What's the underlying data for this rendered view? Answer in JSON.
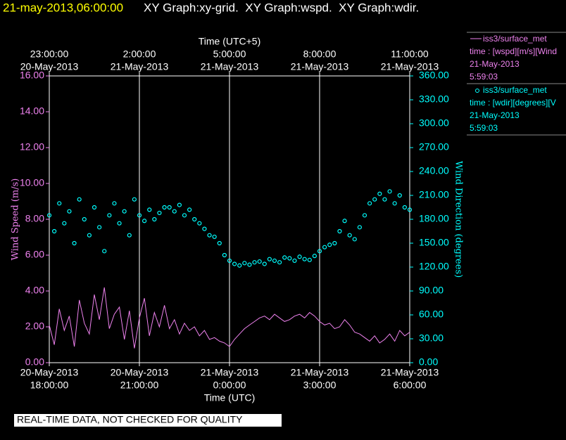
{
  "chart_data": {
    "type": "line",
    "timestamp": "21-may-2013,06:00:00",
    "title": "XY Graph:xy-grid.  XY Graph:wspd.  XY Graph:wdir.",
    "x_label_top": "Time (UTC+5)",
    "x_label": "Time (UTC)",
    "y_label": "Wind Speed (m/s)",
    "y2_label": "Wind Direction (degrees)",
    "note": "REAL-TIME DATA, NOT CHECKED FOR QUALITY",
    "grid": true,
    "xlim": [
      "2013-05-20T18:00",
      "2013-05-21T06:00"
    ],
    "xticks": [
      {
        "value": "2013-05-20T18:00",
        "label": [
          "20-May-2013",
          "18:00:00"
        ]
      },
      {
        "value": "2013-05-20T21:00",
        "label": [
          "20-May-2013",
          "21:00:00"
        ]
      },
      {
        "value": "2013-05-21T00:00",
        "label": [
          "21-May-2013",
          "0:00:00"
        ]
      },
      {
        "value": "2013-05-21T03:00",
        "label": [
          "21-May-2013",
          "3:00:00"
        ]
      },
      {
        "value": "2013-05-21T06:00",
        "label": [
          "21-May-2013",
          "6:00:00"
        ]
      }
    ],
    "x2ticks": [
      {
        "value": "2013-05-20T18:00",
        "label": [
          "23:00:00",
          "20-May-2013"
        ]
      },
      {
        "value": "2013-05-20T21:00",
        "label": [
          "2:00:00",
          "21-May-2013"
        ]
      },
      {
        "value": "2013-05-21T00:00",
        "label": [
          "5:00:00",
          "21-May-2013"
        ]
      },
      {
        "value": "2013-05-21T03:00",
        "label": [
          "8:00:00",
          "21-May-2013"
        ]
      },
      {
        "value": "2013-05-21T06:00",
        "label": [
          "11:00:00",
          "21-May-2013"
        ]
      }
    ],
    "ylim": [
      0,
      16
    ],
    "yticks": [
      {
        "value": 0,
        "label": "0.00"
      },
      {
        "value": 2,
        "label": "2.00"
      },
      {
        "value": 4,
        "label": "4.00"
      },
      {
        "value": 6,
        "label": "6.00"
      },
      {
        "value": 8,
        "label": "8.00"
      },
      {
        "value": 10,
        "label": "10.00"
      },
      {
        "value": 12,
        "label": "12.00"
      },
      {
        "value": 14,
        "label": "14.00"
      },
      {
        "value": 16,
        "label": "16.00"
      }
    ],
    "y2lim": [
      0,
      360
    ],
    "y2ticks": [
      {
        "value": 0,
        "label": "0.00"
      },
      {
        "value": 30,
        "label": "30.00"
      },
      {
        "value": 60,
        "label": "60.00"
      },
      {
        "value": 90,
        "label": "90.00"
      },
      {
        "value": 120,
        "label": "120.00"
      },
      {
        "value": 150,
        "label": "150.00"
      },
      {
        "value": 180,
        "label": "180.00"
      },
      {
        "value": 210,
        "label": "210.00"
      },
      {
        "value": 240,
        "label": "240.00"
      },
      {
        "value": 270,
        "label": "270.00"
      },
      {
        "value": 300,
        "label": "300.00"
      },
      {
        "value": 330,
        "label": "330.00"
      },
      {
        "value": 360,
        "label": "360.00"
      }
    ],
    "x": [
      "2013-05-20T18:00",
      "2013-05-20T18:10",
      "2013-05-20T18:20",
      "2013-05-20T18:30",
      "2013-05-20T18:40",
      "2013-05-20T18:50",
      "2013-05-20T19:00",
      "2013-05-20T19:10",
      "2013-05-20T19:20",
      "2013-05-20T19:30",
      "2013-05-20T19:40",
      "2013-05-20T19:50",
      "2013-05-20T20:00",
      "2013-05-20T20:10",
      "2013-05-20T20:20",
      "2013-05-20T20:30",
      "2013-05-20T20:40",
      "2013-05-20T20:50",
      "2013-05-20T21:00",
      "2013-05-20T21:10",
      "2013-05-20T21:20",
      "2013-05-20T21:30",
      "2013-05-20T21:40",
      "2013-05-20T21:50",
      "2013-05-20T22:00",
      "2013-05-20T22:10",
      "2013-05-20T22:20",
      "2013-05-20T22:30",
      "2013-05-20T22:40",
      "2013-05-20T22:50",
      "2013-05-20T23:00",
      "2013-05-20T23:10",
      "2013-05-20T23:20",
      "2013-05-20T23:30",
      "2013-05-20T23:40",
      "2013-05-20T23:50",
      "2013-05-21T00:00",
      "2013-05-21T00:10",
      "2013-05-21T00:20",
      "2013-05-21T00:30",
      "2013-05-21T00:40",
      "2013-05-21T00:50",
      "2013-05-21T01:00",
      "2013-05-21T01:10",
      "2013-05-21T01:20",
      "2013-05-21T01:30",
      "2013-05-21T01:40",
      "2013-05-21T01:50",
      "2013-05-21T02:00",
      "2013-05-21T02:10",
      "2013-05-21T02:20",
      "2013-05-21T02:30",
      "2013-05-21T02:40",
      "2013-05-21T02:50",
      "2013-05-21T03:00",
      "2013-05-21T03:10",
      "2013-05-21T03:20",
      "2013-05-21T03:30",
      "2013-05-21T03:40",
      "2013-05-21T03:50",
      "2013-05-21T04:00",
      "2013-05-21T04:10",
      "2013-05-21T04:20",
      "2013-05-21T04:30",
      "2013-05-21T04:40",
      "2013-05-21T04:50",
      "2013-05-21T05:00",
      "2013-05-21T05:10",
      "2013-05-21T05:20",
      "2013-05-21T05:30",
      "2013-05-21T05:40",
      "2013-05-21T05:50",
      "2013-05-21T06:00"
    ],
    "series": [
      {
        "name": "iss3/surface_met",
        "type": "line",
        "color": "#ee82ee",
        "desc": "time : [wspd][m/s][Wind",
        "date": "21-May-2013",
        "time": "5:59:03",
        "values": [
          2.1,
          1.0,
          3.0,
          1.8,
          2.6,
          0.9,
          3.5,
          2.2,
          1.6,
          3.8,
          2.4,
          4.2,
          1.9,
          2.7,
          3.1,
          1.3,
          2.9,
          0.8,
          2.5,
          3.6,
          1.5,
          2.8,
          2.0,
          3.2,
          1.9,
          2.4,
          1.6,
          2.2,
          1.8,
          2.0,
          1.5,
          1.8,
          1.3,
          1.4,
          1.2,
          1.1,
          0.9,
          1.3,
          1.6,
          1.9,
          2.1,
          2.3,
          2.5,
          2.6,
          2.4,
          2.7,
          2.5,
          2.3,
          2.4,
          2.6,
          2.7,
          2.5,
          2.8,
          2.6,
          2.3,
          2.1,
          2.2,
          1.9,
          2.0,
          2.4,
          2.1,
          1.7,
          1.6,
          1.4,
          1.2,
          1.5,
          1.1,
          1.3,
          1.6,
          1.2,
          1.8,
          1.5,
          1.7
        ]
      },
      {
        "name": "iss3/surface_met",
        "type": "scatter",
        "axis": "y2",
        "color": "#00ffff",
        "desc": "time : [wdir][degrees][V",
        "date": "21-May-2013",
        "time": "5:59:03",
        "values": [
          185,
          165,
          200,
          175,
          190,
          150,
          205,
          180,
          160,
          195,
          170,
          140,
          185,
          200,
          175,
          190,
          160,
          205,
          185,
          178,
          192,
          180,
          188,
          195,
          195,
          190,
          198,
          185,
          192,
          180,
          175,
          168,
          160,
          158,
          150,
          135,
          128,
          124,
          122,
          125,
          123,
          126,
          127,
          124,
          130,
          128,
          126,
          132,
          131,
          128,
          133,
          130,
          129,
          134,
          140,
          145,
          148,
          150,
          165,
          178,
          160,
          155,
          170,
          185,
          200,
          205,
          212,
          205,
          215,
          200,
          210,
          195,
          192
        ]
      }
    ]
  }
}
